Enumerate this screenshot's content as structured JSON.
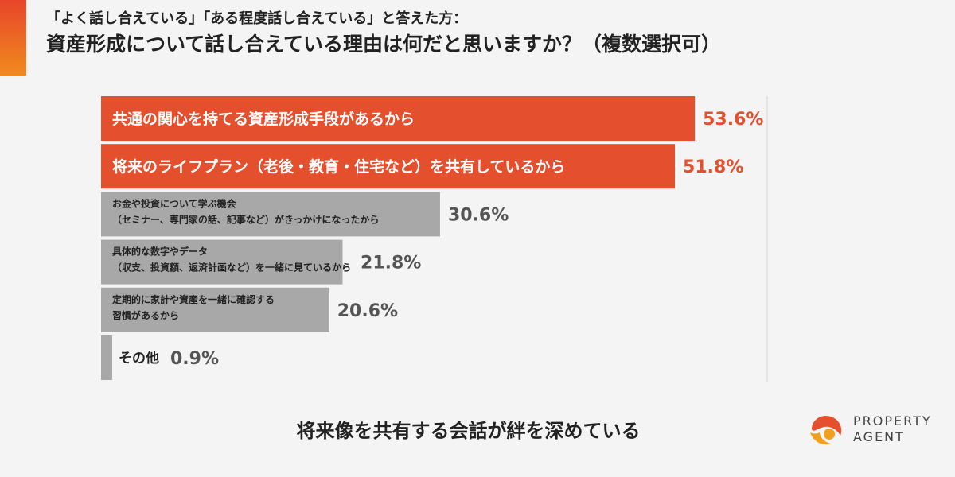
{
  "header": {
    "subtitle": "「よく話し合えている」「ある程度話し合えている」と答えた方：",
    "title": "資産形成について話し合えている理由は何だと思いますか？（複数選択可）"
  },
  "chart_data": {
    "type": "bar",
    "orientation": "horizontal",
    "categories": [
      [
        "共通の関心を持てる資産形成手段があるから"
      ],
      [
        "将来のライフプラン（老後・教育・住宅など）を共有しているから"
      ],
      [
        "お金や投資について学ぶ機会",
        "（セミナー、専門家の話、記事など）がきっかけになったから"
      ],
      [
        "具体的な数字やデータ",
        "（収支、投資額、返済計画など）を一緒に見ているから"
      ],
      [
        "定期的に家計や資産を一緒に確認する",
        "習慣があるから"
      ],
      [
        "その他"
      ]
    ],
    "values": [
      53.6,
      51.8,
      30.6,
      21.8,
      20.6,
      0.9
    ],
    "value_labels": [
      "53.6%",
      "51.8%",
      "30.6%",
      "21.8%",
      "20.6%",
      "0.9%"
    ],
    "highlight_count": 2,
    "xlim": [
      0,
      60
    ],
    "colors": {
      "highlight": "#e4502e",
      "normal": "#a8a8a8",
      "highlight_label": "#e4502e",
      "normal_label": "#555555",
      "axis_line": "#d6d6d6"
    }
  },
  "footer": {
    "caption": "将来像を共有する会話が絆を深めている"
  },
  "logo": {
    "line1": "PROPERTY",
    "line2": "AGENT",
    "icon": "property-agent-logo-icon"
  }
}
